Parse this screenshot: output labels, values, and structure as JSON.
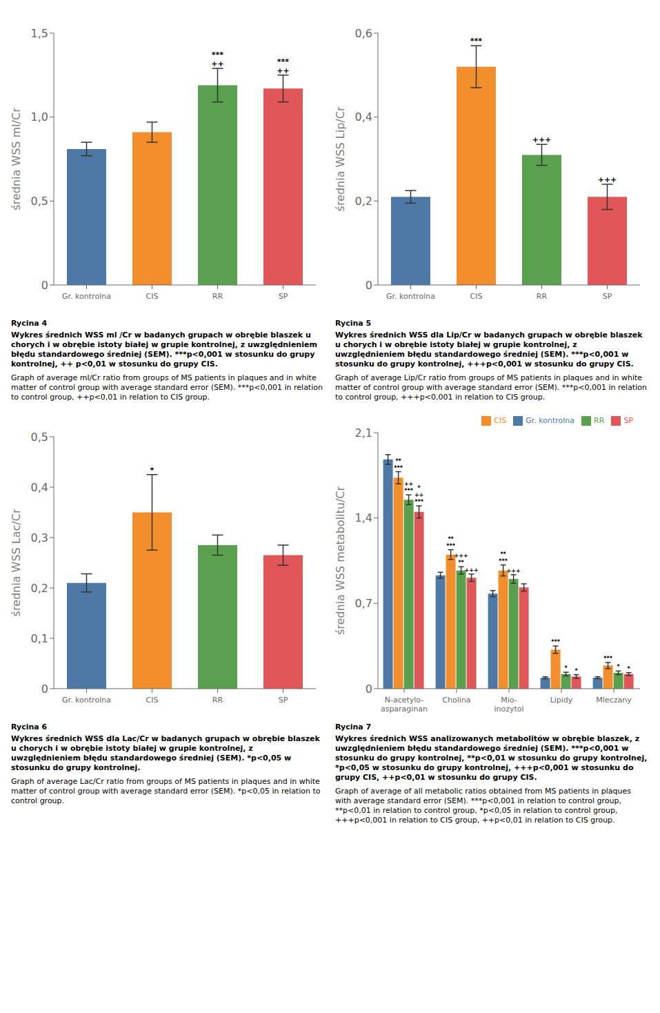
{
  "chart_data": [
    {
      "type": "bar",
      "title": "Rycina 4",
      "subtitle": "Wykres średnich WSS ml /Cr w badanych grupach w obrębie blaszek u chorych i w obrębie istoty białej w grupie kontrolnej, z uwzględnieniem błędu standardowego średniej (SEM). ***p<0,001 w stosunku do grupy kontrolnej, ++ p<0,01 w stosunku do grupy CIS.",
      "caption": "Graph of average ml/Cr ratio from groups of MS patients in plaques and in white matter of control group with average standard error (SEM). ***p<0,001 in relation to control group, ++p<0,01 in relation to CIS group.",
      "ylabel": "średnia WSS ml/Cr",
      "categories": [
        "Gr. kontrolna",
        "CIS",
        "RR",
        "SP"
      ],
      "values": [
        0.81,
        0.91,
        1.19,
        1.17
      ],
      "errors": [
        0.04,
        0.06,
        0.1,
        0.08
      ],
      "colors": [
        "#4e79a7",
        "#f28e2b",
        "#59a14f",
        "#e15759"
      ],
      "ylim": [
        0,
        1.5
      ],
      "yticks": [
        0,
        {
          "value": 0.5,
          "label": "0,5"
        },
        {
          "value": 1.0,
          "label": "1,0"
        },
        {
          "value": 1.5,
          "label": "1,5"
        }
      ],
      "annotations": [
        {
          "category": "RR",
          "text": "++\n***"
        },
        {
          "category": "SP",
          "text": "++\n***"
        }
      ],
      "grid": false
    },
    {
      "type": "bar",
      "title": "Rycina 5",
      "subtitle": "Wykres średnich WSS dla Lip/Cr w badanych grupach w obrębie blaszek u chorych i w obrębie istoty białej w grupie kontrolnej, z uwzględnieniem błędu standardowego średniej (SEM). ***p<0,001 w stosunku do grupy kontrolnej, +++p<0,001 w stosunku do grupy CIS.",
      "caption": "Graph of average Lip/Cr ratio from groups of MS patients in plaques and in white matter of control group with average standard error (SEM). ***p<0,001 in relation to control group,  +++p<0,001 in relation to CIS group.",
      "ylabel": "średnia WSS Lip/Cr",
      "categories": [
        "Gr. kontrolna",
        "CIS",
        "RR",
        "SP"
      ],
      "values": [
        0.21,
        0.52,
        0.31,
        0.21
      ],
      "errors": [
        0.015,
        0.05,
        0.025,
        0.03
      ],
      "colors": [
        "#4e79a7",
        "#f28e2b",
        "#59a14f",
        "#e15759"
      ],
      "ylim": [
        0,
        0.6
      ],
      "yticks": [
        0,
        {
          "value": 0.2,
          "label": "0,2"
        },
        {
          "value": 0.4,
          "label": "0,4"
        },
        {
          "value": 0.6,
          "label": "0,6"
        }
      ],
      "annotations": [
        {
          "category": "CIS",
          "text": "***"
        },
        {
          "category": "RR",
          "text": "+++"
        },
        {
          "category": "SP",
          "text": "+++"
        }
      ],
      "grid": false
    },
    {
      "type": "bar",
      "title": "Rycina 6",
      "subtitle": "Wykres średnich WSS dla Lac/Cr w badanych grupach w obrębie blaszek u chorych i w obrębie istoty białej w grupie kontrolnej, z uwzględnieniem błędu standardowego średniej (SEM). *p<0,05 w stosunku do grupy kontrolnej.",
      "caption": "Graph of average Lac/Cr ratio from groups of MS patients in plaques and in white matter of control group with average standard error (SEM). *p<0,05 in relation to control group.",
      "ylabel": "średnia WSS Lac/Cr",
      "categories": [
        "Gr. kontrolna",
        "CIS",
        "RR",
        "SP"
      ],
      "values": [
        0.21,
        0.35,
        0.285,
        0.265
      ],
      "errors": [
        0.018,
        0.075,
        0.02,
        0.02
      ],
      "colors": [
        "#4e79a7",
        "#f28e2b",
        "#59a14f",
        "#e15759"
      ],
      "ylim": [
        0,
        0.5
      ],
      "yticks": [
        0,
        {
          "value": 0.1,
          "label": "0,1"
        },
        {
          "value": 0.2,
          "label": "0,2"
        },
        {
          "value": 0.3,
          "label": "0,3"
        },
        {
          "value": 0.4,
          "label": "0,4"
        },
        {
          "value": 0.5,
          "label": "0,5"
        }
      ],
      "annotations": [
        {
          "category": "CIS",
          "text": "*"
        }
      ],
      "grid": false
    },
    {
      "type": "bar",
      "title": "Rycina 7",
      "subtitle": "Wykres średnich WSS analizowanych metabolitów w obrębie blaszek, z uwzględnieniem błędu standardowego średniej (SEM). ***p<0,001 w stosunku do grupy kontrolnej, **p<0,01 w stosunku do grupy kontrolnej, *p<0,05 w stosunku do grupy kontrolnej, +++p<0,001 w stosunku do grupy CIS, ++p<0,01 w stosunku do grupy CIS.",
      "caption": "Graph of average of all metabolic ratios obtained from MS patients in plaques with average standard error (SEM). ***p<0,001 in relation to control group, **p<0,01 in relation to control group, *p<0,05 in relation to control group, +++p<0,001 in relation to CIS group, ++p<0,01 in relation to CIS group.",
      "ylabel": "średnia WSS metabolitu/Cr",
      "categories": [
        "N-acetylo-\nasparaginan",
        "Cholina",
        "Mio-\ninozytol",
        "Lipidy",
        "Mleczany"
      ],
      "series": [
        {
          "name": "Gr. kontrolna",
          "color": "#4e79a7",
          "values": [
            1.88,
            0.93,
            0.78,
            0.09,
            0.09
          ],
          "errors": [
            0.04,
            0.025,
            0.025,
            0.008,
            0.008
          ]
        },
        {
          "name": "CIS",
          "color": "#f28e2b",
          "values": [
            1.73,
            1.1,
            0.97,
            0.32,
            0.19
          ],
          "errors": [
            0.05,
            0.04,
            0.045,
            0.03,
            0.025
          ]
        },
        {
          "name": "RR",
          "color": "#59a14f",
          "values": [
            1.55,
            0.97,
            0.9,
            0.12,
            0.13
          ],
          "errors": [
            0.04,
            0.03,
            0.035,
            0.015,
            0.015
          ]
        },
        {
          "name": "SP",
          "color": "#e15759",
          "values": [
            1.45,
            0.91,
            0.83,
            0.1,
            0.12
          ],
          "errors": [
            0.05,
            0.03,
            0.03,
            0.015,
            0.012
          ]
        }
      ],
      "ylim": [
        0,
        2.1
      ],
      "yticks": [
        0,
        {
          "value": 0.7,
          "label": "0,7"
        },
        {
          "value": 1.4,
          "label": "1,4"
        },
        {
          "value": 2.1,
          "label": "2,1"
        }
      ],
      "annotations": [
        {
          "category": "N-acetylo-\nasparaginan",
          "series": "CIS",
          "text": "***\n**"
        },
        {
          "category": "N-acetylo-\nasparaginan",
          "series": "RR",
          "text": "***\n++"
        },
        {
          "category": "N-acetylo-\nasparaginan",
          "series": "SP",
          "text": "***\n++\n*"
        },
        {
          "category": "Cholina",
          "series": "CIS",
          "text": "***\n**"
        },
        {
          "category": "Cholina",
          "series": "RR",
          "text": "**\n+++"
        },
        {
          "category": "Cholina",
          "series": "SP",
          "text": "+++"
        },
        {
          "category": "Mio-\ninozytol",
          "series": "CIS",
          "text": "***\n**"
        },
        {
          "category": "Mio-\ninozytol",
          "series": "RR",
          "text": "+++"
        },
        {
          "category": "Lipidy",
          "series": "CIS",
          "text": "***"
        },
        {
          "category": "Lipidy",
          "series": "RR",
          "text": "*"
        },
        {
          "category": "Lipidy",
          "series": "SP",
          "text": "*"
        },
        {
          "category": "Mleczany",
          "series": "CIS",
          "text": "***"
        },
        {
          "category": "Mleczany",
          "series": "RR",
          "text": "*"
        },
        {
          "category": "Mleczany",
          "series": "SP",
          "text": "*"
        }
      ],
      "legend": "upper right",
      "grid": false
    }
  ]
}
